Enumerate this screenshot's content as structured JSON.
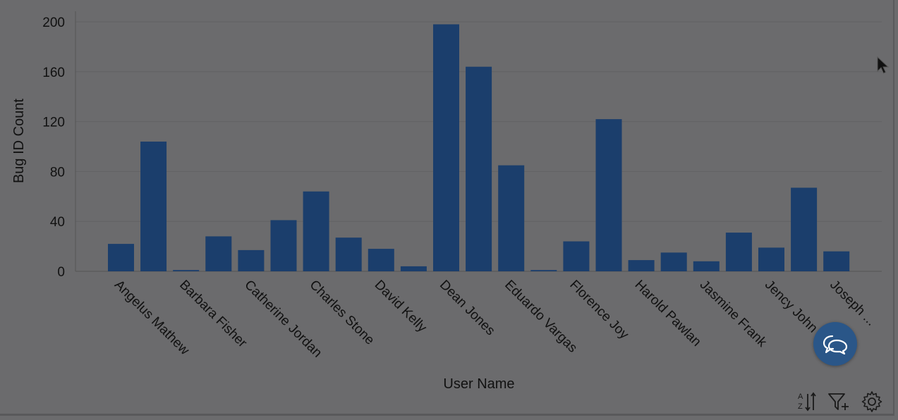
{
  "chart_data": {
    "type": "bar",
    "ylabel": "Bug ID Count",
    "xlabel": "User Name",
    "ylim": [
      0,
      200
    ],
    "yticks": [
      0,
      40,
      80,
      120,
      160,
      200
    ],
    "grid": true,
    "bar_color": "#1b3e6c",
    "values": [
      22,
      104,
      1,
      28,
      17,
      41,
      64,
      27,
      18,
      4,
      198,
      164,
      85,
      1,
      24,
      122,
      9,
      15,
      8,
      31,
      19,
      67,
      16
    ],
    "tick_labels": [
      "Angelus Mathew",
      "Barbara Fisher",
      "Catherine Jordan",
      "Charles Stone",
      "David Kelly",
      "Dean Jones",
      "Eduardo Vargas",
      "Florence Joy",
      "Harold Pawlan",
      "Jasmine Frank",
      "Jency John",
      "Joseph ..."
    ]
  },
  "colors": {
    "background": "#6b6b6d",
    "bar": "#1b3e6c",
    "chat_button": "#2a5688",
    "text": "#111111"
  },
  "toolbar": {
    "icons": [
      "sort-az-icon",
      "filter-add-icon",
      "gear-icon"
    ]
  },
  "chat_button": {
    "icon": "chat-bubbles-icon"
  }
}
